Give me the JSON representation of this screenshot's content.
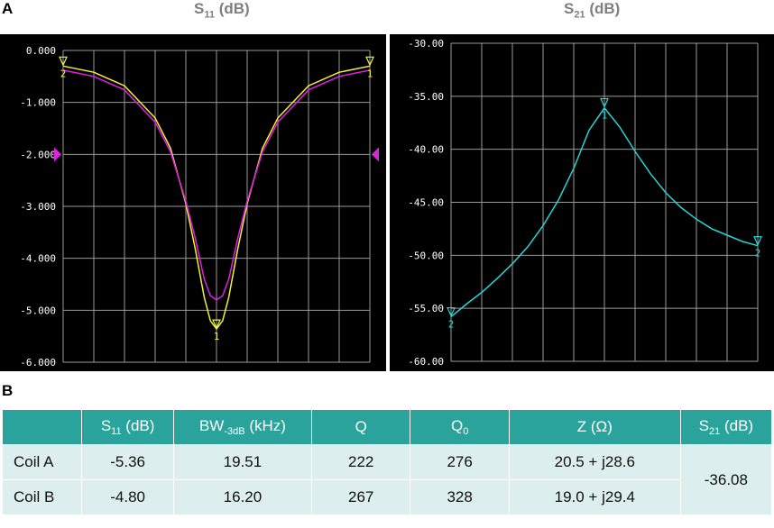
{
  "panel_labels": {
    "a": "A",
    "b": "B"
  },
  "titles": {
    "s11": {
      "main": "S",
      "sub": "11",
      "unit": " (dB)"
    },
    "s21": {
      "main": "S",
      "sub": "21",
      "unit": " (dB)"
    }
  },
  "colors": {
    "trace_yellow": "#f2f233",
    "trace_magenta": "#e021e0",
    "trace_cyan": "#27d4d4",
    "grid": "#9a9a9a",
    "axis_text": "#ffffff",
    "table_header": "#29a39b",
    "table_cell": "#dcefee"
  },
  "chart_data": [
    {
      "type": "line",
      "title": "S11 (dB)",
      "xlabel": "",
      "ylabel": "",
      "ylim": [
        -6.0,
        0.0
      ],
      "xlim": [
        0,
        10
      ],
      "grid": true,
      "yticks": [
        "0.000",
        "-1.000",
        "-2.000",
        "-3.000",
        "-4.000",
        "-5.000",
        "-6.000"
      ],
      "reference_level": -2.0,
      "series": [
        {
          "color": "#f2f233",
          "x": [
            0,
            1,
            2,
            3,
            3.5,
            4,
            4.3,
            4.6,
            4.8,
            5.0,
            5.2,
            5.4,
            5.7,
            6,
            6.5,
            7,
            8,
            9,
            10
          ],
          "y": [
            -0.3,
            -0.42,
            -0.68,
            -1.3,
            -1.88,
            -2.95,
            -3.8,
            -4.75,
            -5.2,
            -5.36,
            -5.2,
            -4.75,
            -3.8,
            -2.95,
            -1.88,
            -1.3,
            -0.68,
            -0.42,
            -0.3
          ]
        },
        {
          "color": "#e021e0",
          "x": [
            0,
            1,
            2,
            3,
            3.5,
            4,
            4.3,
            4.6,
            4.8,
            5.0,
            5.2,
            5.4,
            5.7,
            6,
            6.5,
            7,
            8,
            9,
            10
          ],
          "y": [
            -0.38,
            -0.5,
            -0.76,
            -1.38,
            -1.95,
            -2.9,
            -3.6,
            -4.4,
            -4.72,
            -4.8,
            -4.72,
            -4.4,
            -3.6,
            -2.9,
            -1.95,
            -1.38,
            -0.76,
            -0.5,
            -0.38
          ]
        }
      ],
      "markers": [
        {
          "label": "1",
          "x": 5.0,
          "y": -5.36,
          "color": "#f2f233"
        },
        {
          "label": "2",
          "x": 0.0,
          "y": -0.3,
          "color": "#f2f233"
        },
        {
          "label": "1",
          "x": 10.0,
          "y": -0.3,
          "color": "#f2f233"
        }
      ]
    },
    {
      "type": "line",
      "title": "S21 (dB)",
      "xlabel": "",
      "ylabel": "",
      "ylim": [
        -60.0,
        -30.0
      ],
      "xlim": [
        0,
        10
      ],
      "grid": true,
      "yticks": [
        "-30.00",
        "-35.00",
        "-40.00",
        "-45.00",
        "-50.00",
        "-55.00",
        "-60.00"
      ],
      "series": [
        {
          "color": "#27d4d4",
          "x": [
            0,
            0.5,
            1,
            1.5,
            2,
            2.5,
            3,
            3.5,
            4,
            4.5,
            5,
            5.5,
            6,
            6.5,
            7,
            7.5,
            8,
            8.5,
            9,
            9.5,
            10
          ],
          "y": [
            -55.8,
            -54.6,
            -53.5,
            -52.2,
            -50.8,
            -49.2,
            -47.2,
            -44.8,
            -41.8,
            -38.2,
            -36.1,
            -37.9,
            -40.2,
            -42.3,
            -44.1,
            -45.5,
            -46.6,
            -47.5,
            -48.1,
            -48.7,
            -49.1
          ]
        }
      ],
      "markers": [
        {
          "label": "1",
          "x": 5.0,
          "y": -36.08,
          "color": "#27d4d4"
        },
        {
          "label": "2",
          "x": 0.0,
          "y": -55.8,
          "color": "#27d4d4"
        },
        {
          "label": "2",
          "x": 10.0,
          "y": -49.1,
          "color": "#27d4d4"
        }
      ]
    }
  ],
  "table": {
    "headers": [
      {
        "main": "",
        "sub": "",
        "unit": ""
      },
      {
        "main": "S",
        "sub": "11",
        "unit": " (dB)"
      },
      {
        "main": "BW",
        "sub": "-3dB",
        "unit": " (kHz)"
      },
      {
        "main": "Q",
        "sub": "",
        "unit": ""
      },
      {
        "main": "Q",
        "sub": "0",
        "unit": ""
      },
      {
        "main": "Z (Ω)",
        "sub": "",
        "unit": ""
      },
      {
        "main": "S",
        "sub": "21",
        "unit": " (dB)"
      }
    ],
    "rows": [
      [
        "Coil A",
        "-5.36",
        "19.51",
        "222",
        "276",
        "20.5 + j28.6"
      ],
      [
        "Coil B",
        "-4.80",
        "16.20",
        "267",
        "328",
        "19.0 + j29.4"
      ]
    ],
    "s21_merged": "-36.08"
  }
}
